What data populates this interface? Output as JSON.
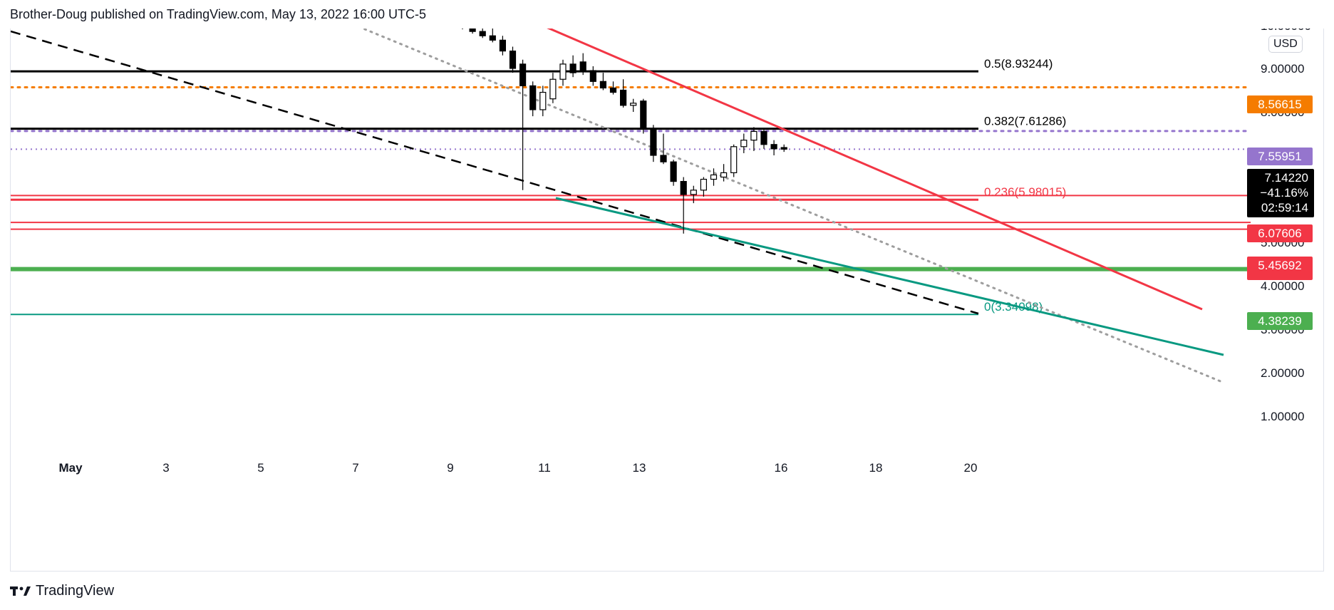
{
  "header": {
    "title": "Brother-Doug published on TradingView.com, May 13, 2022 16:00 UTC-5"
  },
  "footer": {
    "brand": "TradingView"
  },
  "price_axis": {
    "currency": "USD",
    "top_tick_partial": "10.00000",
    "ticks": [
      "9.00000",
      "8.00000",
      "5.00000",
      "4.00000",
      "3.00000",
      "2.00000",
      "1.00000"
    ],
    "tick_values": [
      9,
      8,
      5,
      4,
      3,
      2,
      1
    ]
  },
  "time_axis": {
    "labels": [
      "May",
      "3",
      "5",
      "7",
      "9",
      "11",
      "13",
      "16",
      "18",
      "20"
    ],
    "bold_label": "May"
  },
  "colors": {
    "bull": "#ffffff",
    "bear": "#000000",
    "fib_black": "#000000",
    "orange": "#f57c00",
    "purple": "#9575cd",
    "red": "#f23645",
    "green": "#4caf50",
    "teal": "#089981",
    "gray_dotted": "#9e9e9e"
  },
  "chart_data": {
    "type": "candlestick",
    "symbol_currency": "USD",
    "candles_note": "intraday candles, May 8 – May 13",
    "fib_levels": [
      {
        "label": "0.5(8.93244)",
        "value": 8.93244,
        "color": "#000000"
      },
      {
        "label": "0.382(7.61286)",
        "value": 7.61286,
        "color": "#000000"
      },
      {
        "label": "0.236(5.98015)",
        "value": 5.98015,
        "color": "#f23645"
      },
      {
        "label": "0(3.34098)",
        "value": 3.34098,
        "color": "#089981"
      }
    ],
    "horizontal_levels": [
      {
        "value": 8.56615,
        "label": "8.56615",
        "color": "#f57c00",
        "style": "dotted"
      },
      {
        "value": 7.55951,
        "label": "7.55951",
        "color": "#9575cd",
        "style": "dotted"
      },
      {
        "value": 6.07606,
        "label": "6.07606",
        "color": "#f23645",
        "style": "solid"
      },
      {
        "value": 5.45692,
        "label": "5.45692",
        "color": "#f23645",
        "style": "solid"
      },
      {
        "value": 5.30102,
        "label": "5.30102",
        "color": "#f23645",
        "style": "solid"
      },
      {
        "value": 4.38239,
        "label": "4.38239",
        "color": "#4caf50",
        "style": "solid"
      }
    ],
    "current_price": {
      "value": 7.1422,
      "price": "7.14220",
      "change": "−41.16%",
      "countdown": "02:59:14"
    },
    "candles": [
      {
        "o": 10.0,
        "h": 10.1,
        "l": 9.9,
        "c": 9.95
      },
      {
        "o": 9.95,
        "h": 10.05,
        "l": 9.8,
        "c": 9.85
      },
      {
        "o": 9.85,
        "h": 9.95,
        "l": 9.7,
        "c": 9.75
      },
      {
        "o": 9.75,
        "h": 9.95,
        "l": 9.6,
        "c": 9.65
      },
      {
        "o": 9.65,
        "h": 9.75,
        "l": 9.3,
        "c": 9.4
      },
      {
        "o": 9.4,
        "h": 9.5,
        "l": 8.9,
        "c": 9.0
      },
      {
        "o": 9.1,
        "h": 9.2,
        "l": 6.2,
        "c": 8.6
      },
      {
        "o": 8.6,
        "h": 8.7,
        "l": 7.9,
        "c": 8.05
      },
      {
        "o": 8.05,
        "h": 8.6,
        "l": 7.9,
        "c": 8.45
      },
      {
        "o": 8.3,
        "h": 8.9,
        "l": 8.2,
        "c": 8.75
      },
      {
        "o": 8.75,
        "h": 9.2,
        "l": 8.6,
        "c": 9.1
      },
      {
        "o": 9.1,
        "h": 9.3,
        "l": 8.8,
        "c": 8.9
      },
      {
        "o": 9.15,
        "h": 9.35,
        "l": 8.85,
        "c": 8.95
      },
      {
        "o": 8.95,
        "h": 9.05,
        "l": 8.6,
        "c": 8.7
      },
      {
        "o": 8.7,
        "h": 8.9,
        "l": 8.5,
        "c": 8.55
      },
      {
        "o": 8.55,
        "h": 8.7,
        "l": 8.4,
        "c": 8.45
      },
      {
        "o": 8.5,
        "h": 8.75,
        "l": 8.1,
        "c": 8.15
      },
      {
        "o": 8.15,
        "h": 8.3,
        "l": 8.0,
        "c": 8.2
      },
      {
        "o": 8.25,
        "h": 8.3,
        "l": 7.5,
        "c": 7.6
      },
      {
        "o": 7.6,
        "h": 7.7,
        "l": 6.85,
        "c": 7.0
      },
      {
        "o": 7.0,
        "h": 7.5,
        "l": 6.8,
        "c": 6.85
      },
      {
        "o": 6.85,
        "h": 6.9,
        "l": 6.3,
        "c": 6.4
      },
      {
        "o": 6.4,
        "h": 6.5,
        "l": 5.2,
        "c": 6.1
      },
      {
        "o": 6.1,
        "h": 6.3,
        "l": 5.9,
        "c": 6.2
      },
      {
        "o": 6.2,
        "h": 6.5,
        "l": 6.05,
        "c": 6.45
      },
      {
        "o": 6.45,
        "h": 6.7,
        "l": 6.3,
        "c": 6.55
      },
      {
        "o": 6.5,
        "h": 6.8,
        "l": 6.4,
        "c": 6.6
      },
      {
        "o": 6.6,
        "h": 7.25,
        "l": 6.5,
        "c": 7.2
      },
      {
        "o": 7.2,
        "h": 7.5,
        "l": 7.05,
        "c": 7.35
      },
      {
        "o": 7.35,
        "h": 7.65,
        "l": 7.1,
        "c": 7.55
      },
      {
        "o": 7.55,
        "h": 7.6,
        "l": 7.15,
        "c": 7.25
      },
      {
        "o": 7.25,
        "h": 7.35,
        "l": 7.0,
        "c": 7.15
      },
      {
        "o": 7.18,
        "h": 7.25,
        "l": 7.08,
        "c": 7.1422
      }
    ]
  }
}
